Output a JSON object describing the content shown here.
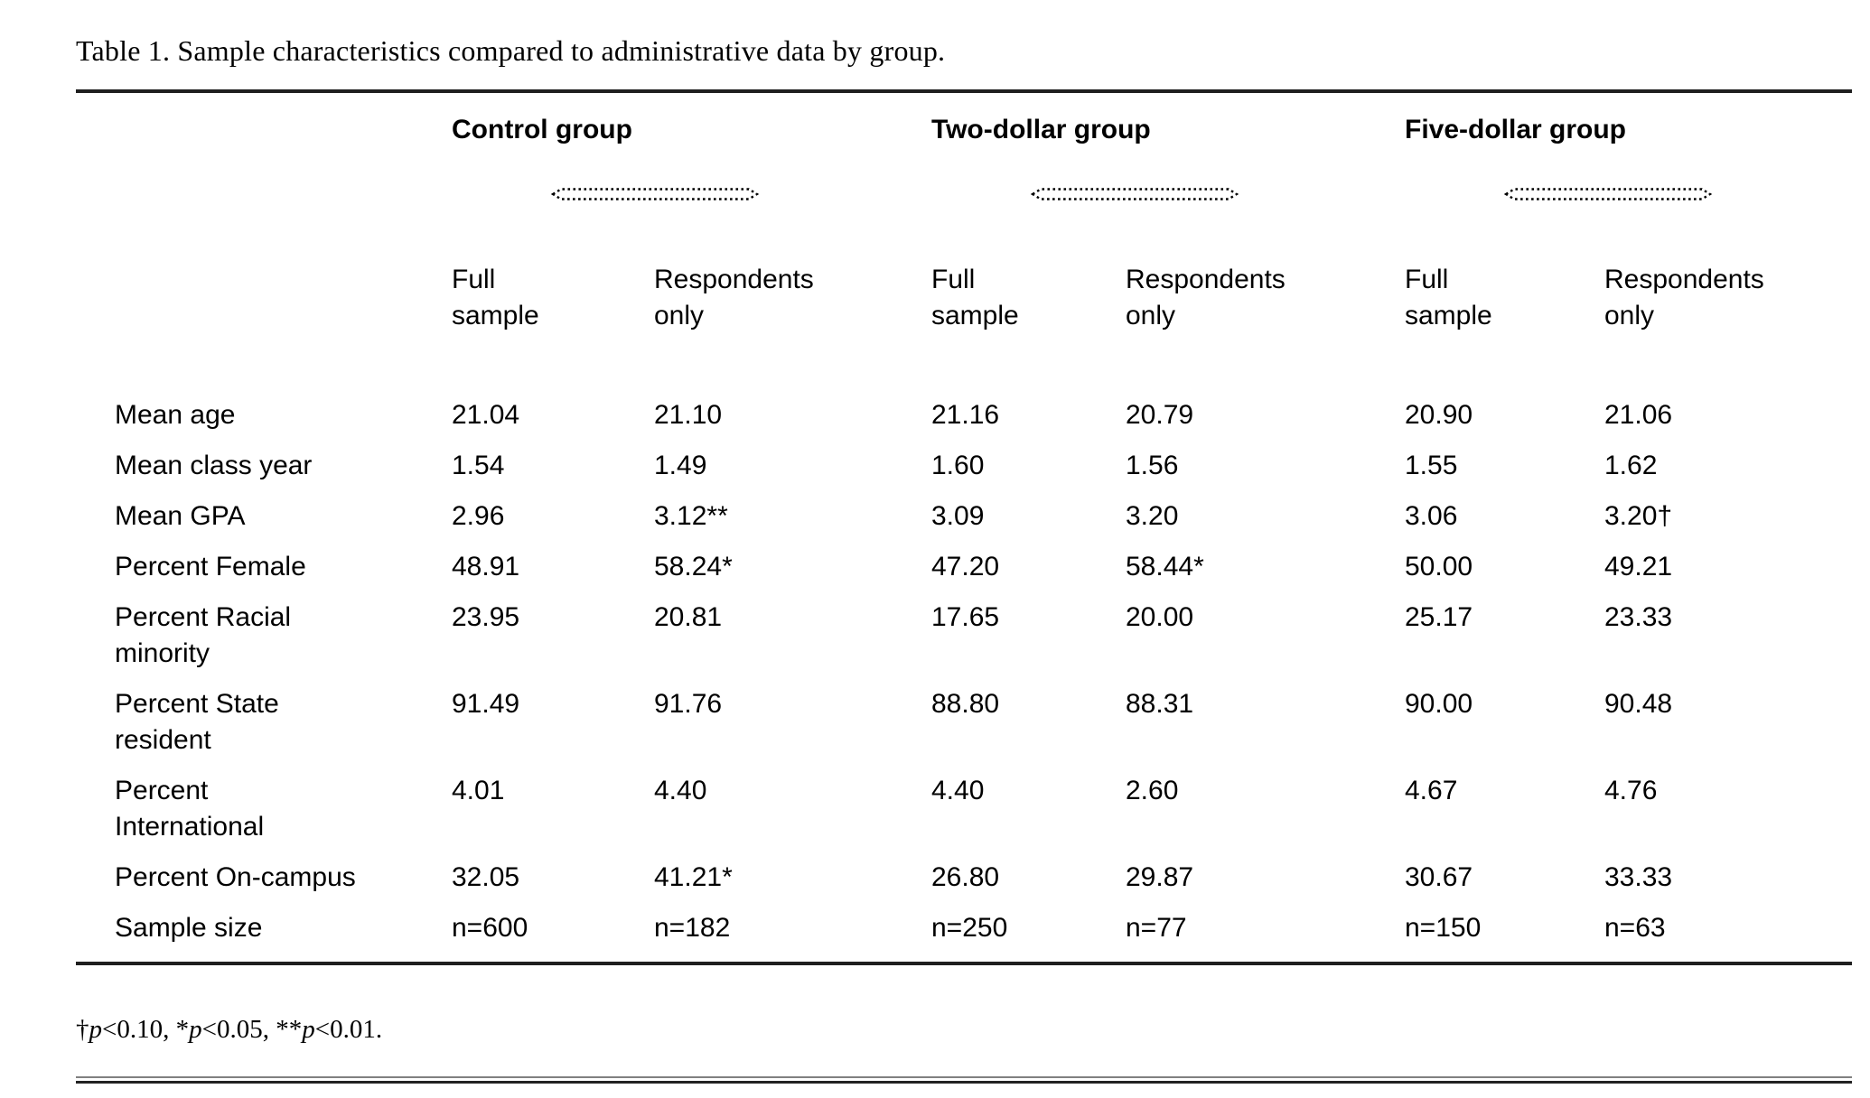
{
  "title": "Table 1. Sample characteristics compared to administrative data by group.",
  "colors": {
    "text": "#000000",
    "rule": "#1f1f1f"
  },
  "table": {
    "groups": [
      {
        "label": "Control group"
      },
      {
        "label": "Two-dollar group"
      },
      {
        "label": "Five-dollar group"
      }
    ],
    "subheaders": [
      {
        "line1": "Full",
        "line2": "sample"
      },
      {
        "line1": "Respondents",
        "line2": "only"
      }
    ],
    "rows": [
      {
        "label_lines": [
          "Mean age"
        ],
        "values": [
          "21.04",
          "21.10",
          "21.16",
          "20.79",
          "20.90",
          "21.06"
        ]
      },
      {
        "label_lines": [
          "Mean class year"
        ],
        "values": [
          "1.54",
          "1.49",
          "1.60",
          "1.56",
          "1.55",
          "1.62"
        ]
      },
      {
        "label_lines": [
          "Mean GPA"
        ],
        "values": [
          "2.96",
          "3.12**",
          "3.09",
          "3.20",
          "3.06",
          "3.20†"
        ]
      },
      {
        "label_lines": [
          "Percent Female"
        ],
        "values": [
          "48.91",
          "58.24*",
          "47.20",
          "58.44*",
          "50.00",
          "49.21"
        ]
      },
      {
        "label_lines": [
          "Percent Racial",
          "minority"
        ],
        "values": [
          "23.95",
          "20.81",
          "17.65",
          "20.00",
          "25.17",
          "23.33"
        ]
      },
      {
        "label_lines": [
          "Percent State",
          "resident"
        ],
        "values": [
          "91.49",
          "91.76",
          "88.80",
          "88.31",
          "90.00",
          "90.48"
        ]
      },
      {
        "label_lines": [
          "Percent",
          "International"
        ],
        "values": [
          "4.01",
          "4.40",
          "4.40",
          "2.60",
          "4.67",
          "4.76"
        ]
      },
      {
        "label_lines": [
          "Percent On-campus"
        ],
        "values": [
          "32.05",
          "41.21*",
          "26.80",
          "29.87",
          "30.67",
          "33.33"
        ]
      },
      {
        "label_lines": [
          "Sample size"
        ],
        "values": [
          "n=600",
          "n=182",
          "n=250",
          "n=77",
          "n=150",
          "n=63"
        ]
      }
    ]
  },
  "footnote": {
    "segments": [
      {
        "text": "†",
        "italic": false
      },
      {
        "text": "p",
        "italic": true
      },
      {
        "text": "<0.10, ",
        "italic": false
      },
      {
        "text": "*",
        "italic": false
      },
      {
        "text": "p",
        "italic": true
      },
      {
        "text": "<0.05, ",
        "italic": false
      },
      {
        "text": "**",
        "italic": false
      },
      {
        "text": "p",
        "italic": true
      },
      {
        "text": "<0.01.",
        "italic": false
      }
    ]
  }
}
